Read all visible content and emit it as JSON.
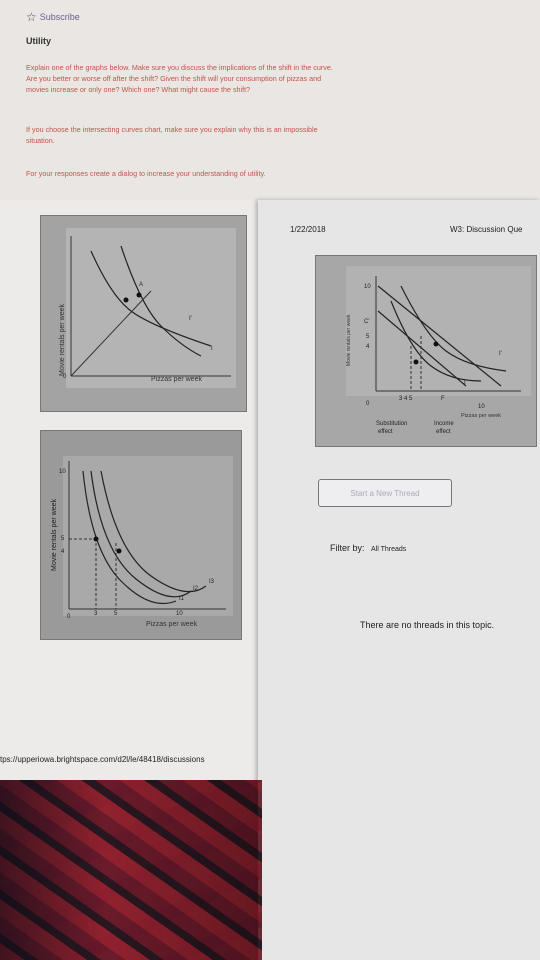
{
  "header": {
    "subscribe_label": "Subscribe",
    "section_title": "Utility"
  },
  "instructions": {
    "p1_line1": "Explain one of the graphs below. Make sure you discuss the implications of the shift in the curve.",
    "p1_line2": "Are you better or worse off after the shift? Given the shift will your consumption of pizzas and",
    "p1_line3": "movies increase or only one? Which one? What might cause the shift?",
    "p2_line1": "If you choose the intersecting curves chart, make sure you explain why this is an impossible",
    "p2_line2": "situation.",
    "p3": "For your responses create a dialog to increase your understanding of utility."
  },
  "graph1": {
    "ylabel": "Movie rentals per week",
    "xlabel": "Pizzas per week",
    "origin": "0",
    "curve_a": "A",
    "curve_i": "I'",
    "curve_i2": "I"
  },
  "graph2": {
    "ylabel": "Movie rentals per week",
    "xlabel": "Pizzas per week",
    "y_ticks": [
      "10",
      "5",
      "4"
    ],
    "x_ticks": [
      "0",
      "3",
      "5",
      "10"
    ],
    "curves": [
      "I3",
      "I2",
      "I1"
    ]
  },
  "graph3": {
    "ylabel": "Movie rentals per week",
    "xlabel": "Pizzas per week",
    "y_ticks": [
      "10",
      "C'",
      "5",
      "4"
    ],
    "x_ticks": [
      "0",
      "3 4 5",
      "F",
      "10"
    ],
    "curves": [
      "I'",
      "I"
    ],
    "sub_label": "Substitution",
    "sub_label2": "effect",
    "inc_label": "Income",
    "inc_label2": "effect"
  },
  "discussion": {
    "date": "1/22/2018",
    "title": "W3: Discussion Que",
    "new_thread_button": "Start a New Thread",
    "filter_label": "Filter by:",
    "filter_value": "All Threads",
    "empty_message": "There are no threads in this topic."
  },
  "footer": {
    "url": "tps://upperiowa.brightspace.com/d2l/le/48418/discussions"
  },
  "colors": {
    "instruction_text": "#c0574a",
    "subscribe_text": "#6a5f92"
  }
}
